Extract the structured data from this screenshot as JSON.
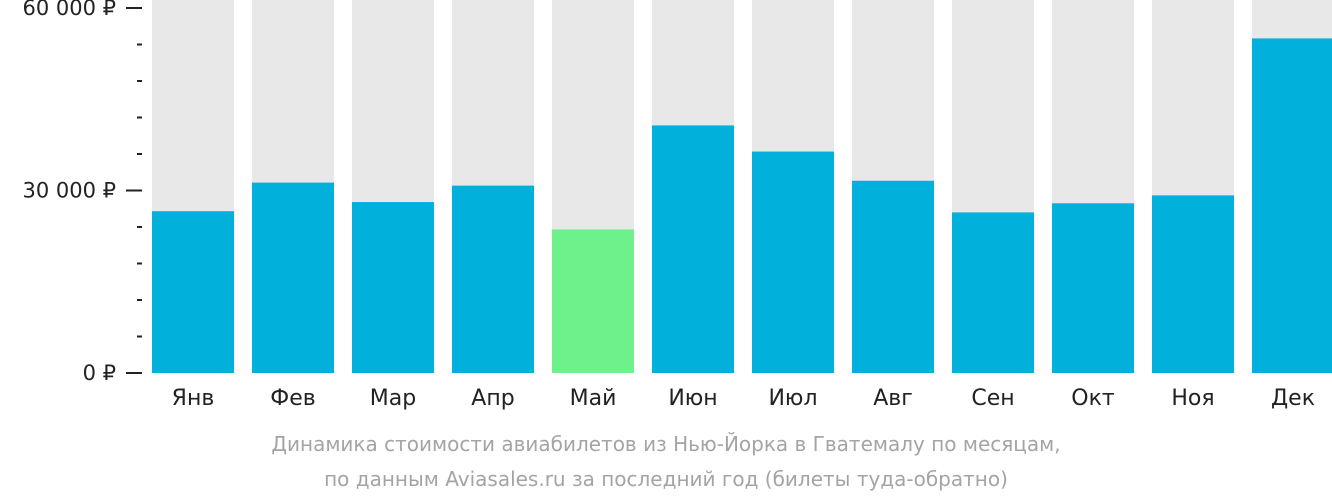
{
  "chart_data": {
    "type": "bar",
    "categories": [
      "Янв",
      "Фев",
      "Мар",
      "Апр",
      "Май",
      "Июн",
      "Июл",
      "Авг",
      "Сен",
      "Окт",
      "Ноя",
      "Дек"
    ],
    "values": [
      26600,
      31300,
      28100,
      30800,
      23600,
      40700,
      36400,
      31600,
      26400,
      27900,
      29200,
      55000
    ],
    "highlight_index": 4,
    "ylim": [
      0,
      60000
    ],
    "yticks": [
      {
        "value": 0,
        "label": "0 ₽"
      },
      {
        "value": 30000,
        "label": "30 000 ₽"
      },
      {
        "value": 60000,
        "label": "60 000 ₽"
      }
    ],
    "minor_tick_step": 6000,
    "grid": false,
    "colors": {
      "bar": "#02b0dc",
      "highlight": "#6ef08a",
      "track": "#e8e8e8",
      "axis": "#222222"
    },
    "title": "Динамика стоимости авиабилетов из Нью-Йорка в Гватемалу по месяцам,",
    "subtitle": "по данным Aviasales.ru за последний год (билеты туда-обратно)"
  }
}
